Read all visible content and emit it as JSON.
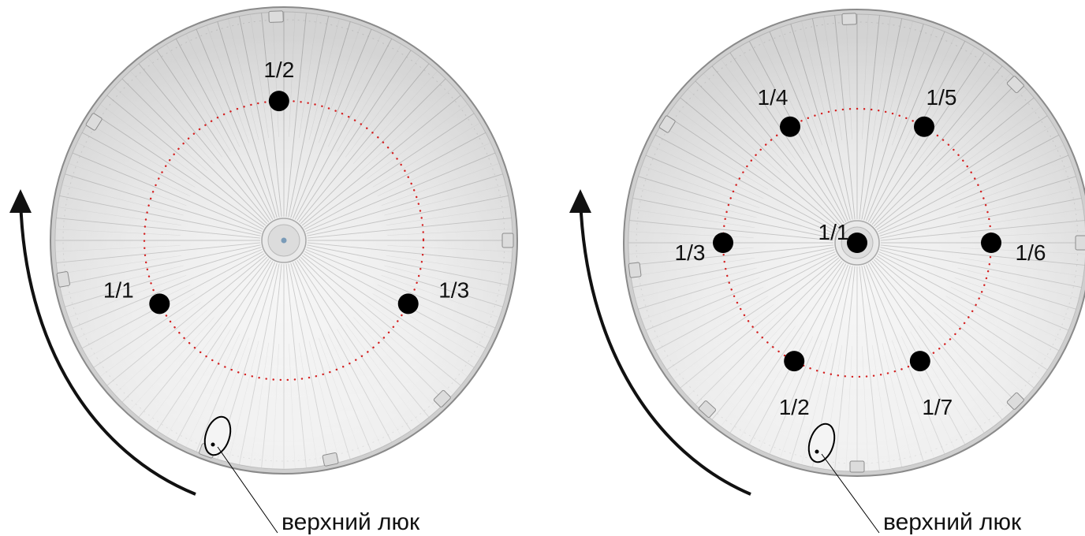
{
  "diagrams": [
    {
      "id": "left",
      "points": [
        {
          "label": "1/2",
          "angle": 92,
          "pos": "ring"
        },
        {
          "label": "1/1",
          "angle": 207,
          "pos": "ring"
        },
        {
          "label": "1/3",
          "angle": 333,
          "pos": "ring"
        }
      ],
      "callout": "верхний люк"
    },
    {
      "id": "right",
      "points": [
        {
          "label": "1/1",
          "angle": 0,
          "pos": "center"
        },
        {
          "label": "1/2",
          "angle": 242,
          "pos": "ring"
        },
        {
          "label": "1/3",
          "angle": 180,
          "pos": "ring"
        },
        {
          "label": "1/4",
          "angle": 120,
          "pos": "ring"
        },
        {
          "label": "1/5",
          "angle": 60,
          "pos": "ring"
        },
        {
          "label": "1/6",
          "angle": 0,
          "pos": "ring"
        },
        {
          "label": "1/7",
          "angle": 298,
          "pos": "ring"
        }
      ],
      "callout": "верхний люк"
    }
  ],
  "colors": {
    "tank_fill": "#e3e3e3",
    "tank_outline": "#8a8a8a",
    "panel_line": "#a0a0a0",
    "ring_dots": "#d42020",
    "sample_points": "#000000",
    "arrow": "#111111"
  },
  "icons": [
    "rotation-arrow-icon",
    "top-hatch-icon"
  ]
}
